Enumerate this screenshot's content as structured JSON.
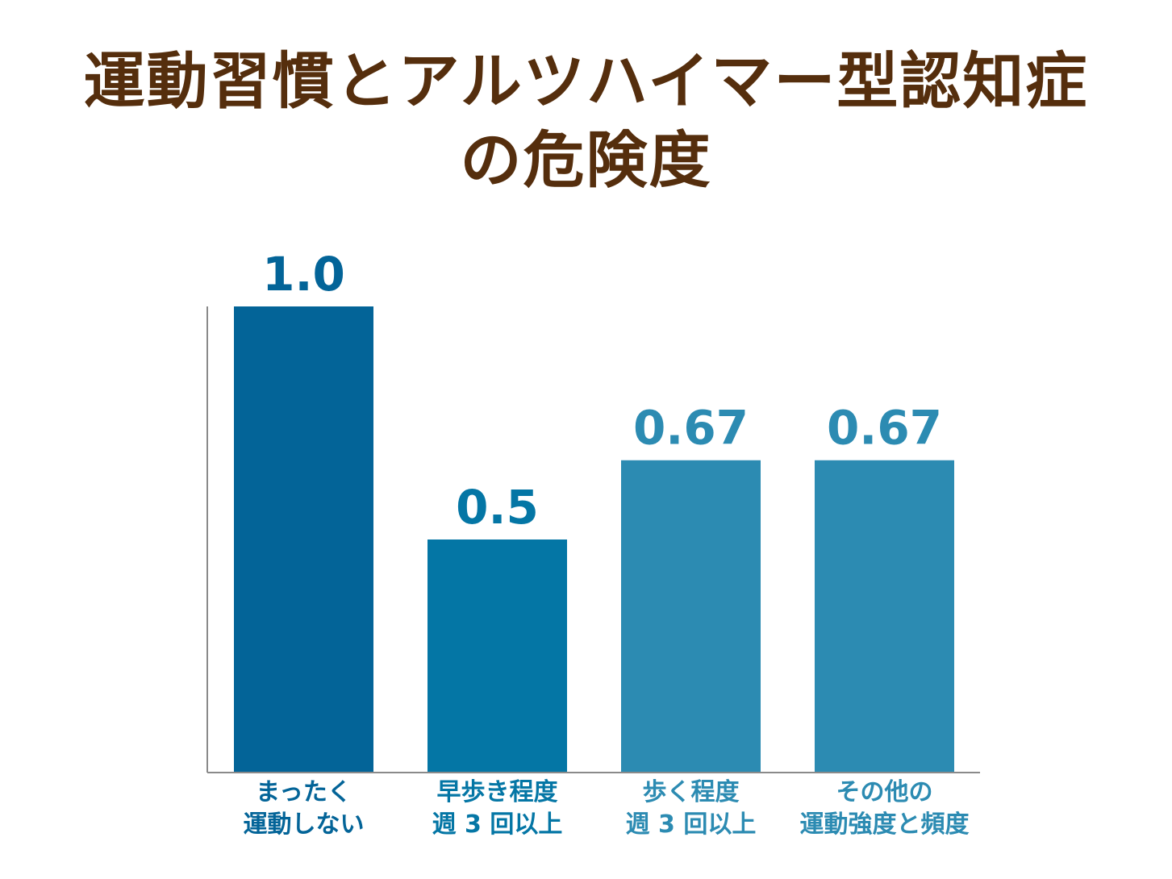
{
  "title_lines": [
    "運動習慣とアルツハイマー型認知症",
    "の危険度"
  ],
  "colors": {
    "title": "#552e0d",
    "axis": "#8a8a8a",
    "bars": [
      "#036498",
      "#0476a5",
      "#2c8bb2",
      "#2c8bb2"
    ],
    "labels": [
      "#036498",
      "#0476a5",
      "#2c8bb2",
      "#2c8bb2"
    ]
  },
  "chart_data": {
    "type": "bar",
    "title": "運動習慣とアルツハイマー型認知症の危険度",
    "categories": [
      [
        "まったく",
        "運動しない"
      ],
      [
        "早歩き程度",
        "週 3 回以上"
      ],
      [
        "歩く程度",
        "週 3 回以上"
      ],
      [
        "その他の",
        "運動強度と頻度"
      ]
    ],
    "values": [
      1.0,
      0.5,
      0.67,
      0.67
    ],
    "value_labels": [
      "1.0",
      "0.5",
      "0.67",
      "0.67"
    ],
    "xlabel": "",
    "ylabel": "",
    "ylim": [
      0,
      1.0
    ],
    "grid": false
  }
}
